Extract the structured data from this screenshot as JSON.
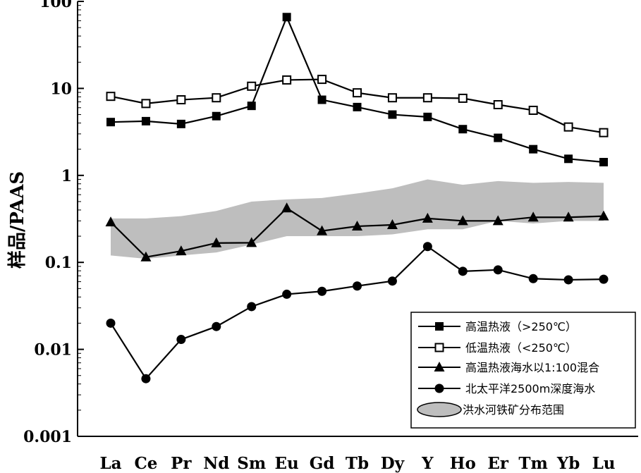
{
  "chart_data": {
    "type": "line",
    "y_scale": "log",
    "ylabel": "样品/PAAS",
    "xlabel": "",
    "title": "",
    "ylim": [
      0.001,
      100
    ],
    "y_ticks": [
      "100",
      "10",
      "1",
      "0.1",
      "0.01",
      "0.001"
    ],
    "categories": [
      "La",
      "Ce",
      "Pr",
      "Nd",
      "Sm",
      "Eu",
      "Gd",
      "Tb",
      "Dy",
      "Y",
      "Ho",
      "Er",
      "Tm",
      "Yb",
      "Lu"
    ],
    "band": {
      "name": "洪水河铁矿分布范围",
      "color": "#bebebe",
      "upper": [
        0.32,
        0.32,
        0.34,
        0.39,
        0.5,
        0.53,
        0.55,
        0.62,
        0.71,
        0.9,
        0.78,
        0.86,
        0.82,
        0.84,
        0.82
      ],
      "lower": [
        0.12,
        0.11,
        0.12,
        0.13,
        0.16,
        0.2,
        0.2,
        0.2,
        0.21,
        0.24,
        0.24,
        0.3,
        0.28,
        0.3,
        0.3
      ]
    },
    "series": [
      {
        "name": "高温热液（>250℃）",
        "marker": "filled-square",
        "values": [
          4.1,
          4.2,
          3.9,
          4.8,
          6.3,
          66,
          7.4,
          6.1,
          5.0,
          4.7,
          3.4,
          2.7,
          2.0,
          1.55,
          1.42
        ]
      },
      {
        "name": "低温热液（<250℃）",
        "marker": "open-square",
        "values": [
          8.1,
          6.7,
          7.4,
          7.8,
          10.6,
          12.5,
          12.7,
          8.9,
          7.8,
          7.8,
          7.7,
          6.5,
          5.6,
          3.6,
          3.1
        ]
      },
      {
        "name": "高温热液海水以1:100混合",
        "marker": "filled-triangle",
        "values": [
          0.29,
          0.115,
          0.135,
          0.167,
          0.168,
          0.42,
          0.23,
          0.26,
          0.27,
          0.32,
          0.3,
          0.3,
          0.33,
          0.33,
          0.34
        ]
      },
      {
        "name": "北太平洋2500m深度海水",
        "marker": "filled-circle",
        "values": [
          0.02,
          0.0046,
          0.013,
          0.0183,
          0.031,
          0.043,
          0.0465,
          0.0535,
          0.061,
          0.152,
          0.079,
          0.082,
          0.065,
          0.063,
          0.064
        ]
      }
    ],
    "legend_placement": "bottom-right",
    "grid": false
  }
}
